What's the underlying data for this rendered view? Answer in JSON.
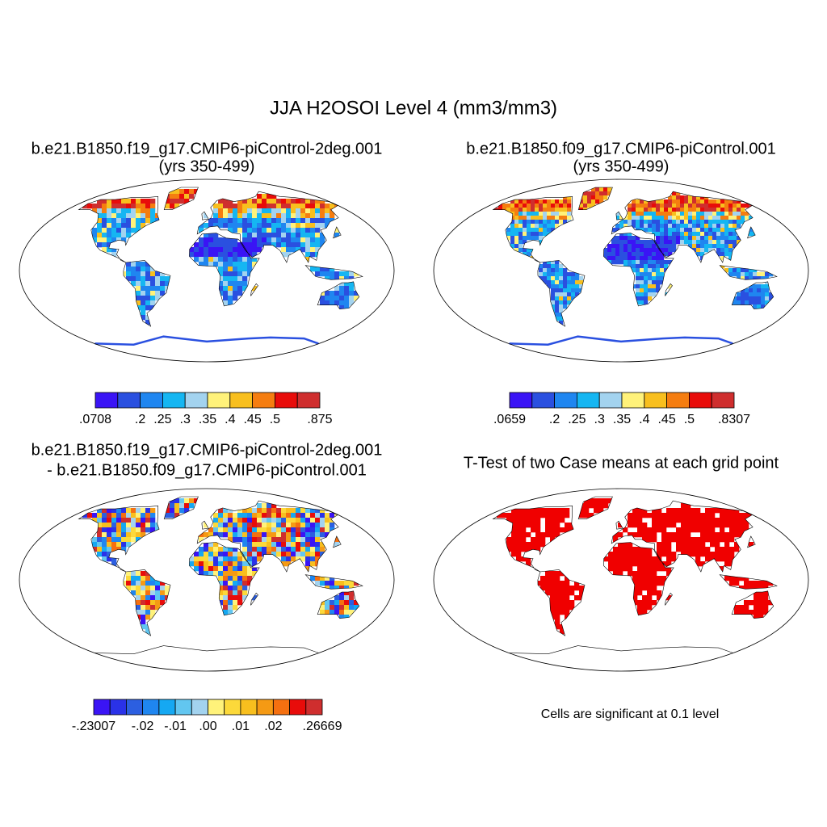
{
  "title": "JJA H2OSOI Level 4 (mm3/mm3)",
  "panels": [
    {
      "kind": "field",
      "title_lines": [
        "b.e21.B1850.f19_g17.CMIP6-piControl-2deg.001",
        "(yrs 350-499)"
      ],
      "colorbar": {
        "colors": [
          "#3a14f5",
          "#2a50e0",
          "#1f86f0",
          "#15b6f2",
          "#a3d3ef",
          "#fff27a",
          "#f8bf1e",
          "#f57d10",
          "#e80c0a",
          "#cf2e2e"
        ],
        "labels": [
          ".0708",
          null,
          ".2",
          ".25",
          ".3",
          ".35",
          ".4",
          ".45",
          ".5",
          null,
          ".875"
        ]
      }
    },
    {
      "kind": "field",
      "title_lines": [
        "b.e21.B1850.f09_g17.CMIP6-piControl.001",
        "(yrs 350-499)"
      ],
      "colorbar": {
        "colors": [
          "#3a14f5",
          "#2a50e0",
          "#1f86f0",
          "#15b6f2",
          "#a3d3ef",
          "#fff27a",
          "#f8bf1e",
          "#f57d10",
          "#e80c0a",
          "#cf2e2e"
        ],
        "labels": [
          ".0659",
          null,
          ".2",
          ".25",
          ".3",
          ".35",
          ".4",
          ".45",
          ".5",
          null,
          ".8307"
        ]
      }
    },
    {
      "kind": "diff",
      "title_lines": [
        "b.e21.B1850.f19_g17.CMIP6-piControl-2deg.001",
        "- b.e21.B1850.f09_g17.CMIP6-piControl.001"
      ],
      "colorbar": {
        "colors": [
          "#3a14f5",
          "#2a32e8",
          "#2c5fe0",
          "#1f86f0",
          "#15a8f2",
          "#62c6f0",
          "#a3d3ef",
          "#fff27a",
          "#fcd93a",
          "#f8bf1e",
          "#f59a14",
          "#f57010",
          "#e80c0a",
          "#cf2e2e"
        ],
        "labels": [
          "-.23007",
          null,
          null,
          "-.02",
          null,
          "-.01",
          null,
          ".00",
          null,
          ".01",
          null,
          ".02",
          null,
          null,
          ".26669"
        ]
      }
    },
    {
      "kind": "sig",
      "title_lines": [
        "T-Test of two Case means at each grid point"
      ],
      "color": "#f00000",
      "note": "Cells are significant at 0.1 level"
    }
  ]
}
